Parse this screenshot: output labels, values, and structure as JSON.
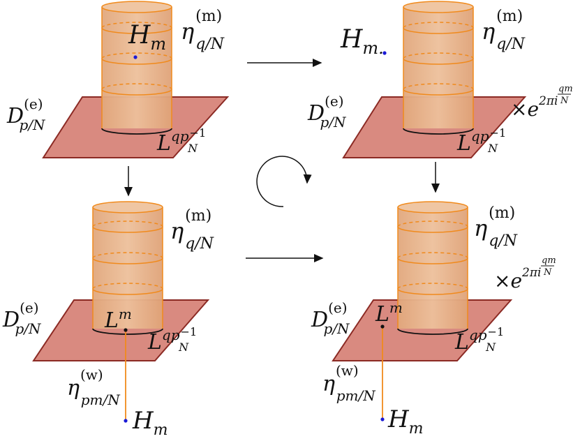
{
  "panels": [
    {
      "id": "top-left",
      "surface": {
        "base": "D",
        "sup": "(e)",
        "sub": "p/N"
      },
      "line": {
        "base": "η",
        "sup": "(m)",
        "sub": "q/N"
      },
      "bottom": {
        "base": "L",
        "sup": "qp",
        "subsup_sub": "N",
        "subsup_sup": "−1"
      },
      "point": {
        "base": "H",
        "sub": "m"
      }
    },
    {
      "id": "top-right",
      "surface": {
        "base": "D",
        "sup": "(e)",
        "sub": "p/N"
      },
      "line": {
        "base": "η",
        "sup": "(m)",
        "sub": "q/N"
      },
      "bottom": {
        "base": "L",
        "sup": "qp",
        "subsup_sub": "N",
        "subsup_sup": "−1"
      },
      "point": {
        "base": "H",
        "sub": "m."
      },
      "phase": {
        "times": "×",
        "base": "e",
        "sup": "2πi",
        "frac_num": "qm",
        "frac_den": "N"
      }
    },
    {
      "id": "bottom-left",
      "surface": {
        "base": "D",
        "sup": "(e)",
        "sub": "p/N"
      },
      "line": {
        "base": "η",
        "sup": "(m)",
        "sub": "q/N"
      },
      "bottom": {
        "base": "L",
        "sup": "qp",
        "subsup_sub": "N",
        "subsup_sup": "−1"
      },
      "junction": {
        "base": "L",
        "sup": "m"
      },
      "wline": {
        "base": "η",
        "sup": "(w)",
        "sub": "pm/N"
      },
      "point": {
        "base": "H",
        "sub": "m"
      }
    },
    {
      "id": "bottom-right",
      "surface": {
        "base": "D",
        "sup": "(e)",
        "sub": "p/N"
      },
      "line": {
        "base": "η",
        "sup": "(m)",
        "sub": "q/N"
      },
      "bottom": {
        "base": "L",
        "sup": "qp",
        "subsup_sub": "N",
        "subsup_sup": "−1"
      },
      "junction": {
        "base": "L",
        "sup": "m"
      },
      "wline": {
        "base": "η",
        "sup": "(w)",
        "sub": "pm/N"
      },
      "point": {
        "base": "H",
        "sub": "m"
      },
      "phase": {
        "times": "×",
        "base": "e",
        "sup": "2πi",
        "frac_num": "qm",
        "frac_den": "N"
      }
    }
  ],
  "colors": {
    "plane_fill": "#d98a80",
    "plane_stroke": "#8b2a24",
    "cylinder_fill": "#e8b48a",
    "cylinder_stroke": "#f08a1c",
    "dot_blue": "#1a1ad6",
    "line_orange": "#f08a1c"
  }
}
